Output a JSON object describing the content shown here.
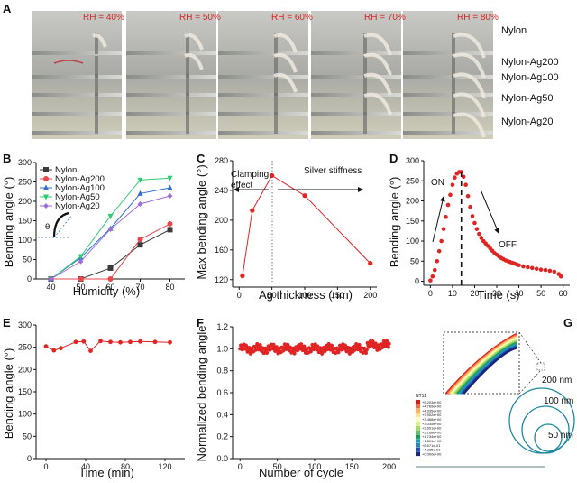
{
  "panel_a": {
    "letter": "A",
    "rh_labels": [
      "RH = 40%",
      "RH = 50%",
      "RH = 60%",
      "RH = 70%",
      "RH = 80%"
    ],
    "sample_labels": [
      "Nylon",
      "Nylon-Ag200",
      "Nylon-Ag100",
      "Nylon-Ag50",
      "Nylon-Ag20"
    ]
  },
  "panel_letters": {
    "b": "B",
    "c": "C",
    "d": "D",
    "e": "E",
    "f": "F",
    "g": "G"
  },
  "colors": {
    "nylon": "#3b3b3b",
    "ag200": "#e8474c",
    "ag100": "#2f6fd0",
    "ag50": "#2ecc71",
    "ag20": "#9b6fd6",
    "red": "#e02424"
  },
  "chart_data": [
    {
      "panel": "B",
      "type": "line",
      "xlabel": "Humidity (%)",
      "ylabel": "Bending angle (°)",
      "xlim": [
        35,
        85
      ],
      "ylim": [
        0,
        300
      ],
      "xticks": [
        40,
        50,
        60,
        70,
        80
      ],
      "yticks": [
        0,
        50,
        100,
        150,
        200,
        250,
        300
      ],
      "legend_position": "top-left",
      "inset_symbol": "θ",
      "x": [
        40,
        50,
        60,
        70,
        80
      ],
      "series": [
        {
          "name": "Nylon",
          "color": "#3b3b3b",
          "marker": "square",
          "values": [
            0,
            0,
            28,
            88,
            127
          ]
        },
        {
          "name": "Nylon-Ag200",
          "color": "#e8474c",
          "marker": "circle",
          "values": [
            0,
            0,
            0,
            102,
            142
          ]
        },
        {
          "name": "Nylon-Ag100",
          "color": "#2f6fd0",
          "marker": "triangle-up",
          "values": [
            0,
            55,
            130,
            220,
            235
          ]
        },
        {
          "name": "Nylon-Ag50",
          "color": "#2ecc71",
          "marker": "triangle-down",
          "values": [
            0,
            58,
            162,
            255,
            260
          ]
        },
        {
          "name": "Nylon-Ag20",
          "color": "#9b6fd6",
          "marker": "diamond",
          "values": [
            0,
            45,
            128,
            193,
            214
          ]
        }
      ]
    },
    {
      "panel": "C",
      "type": "line",
      "xlabel": "Ag thickness (nm)",
      "ylabel": "Max bending angle (°)",
      "xlim": [
        -10,
        210
      ],
      "ylim": [
        110,
        280
      ],
      "xticks": [
        0,
        50,
        100,
        150,
        200
      ],
      "yticks": [
        120,
        160,
        200,
        240,
        280
      ],
      "annotations": [
        "Clamping effect",
        "Silver stiffness"
      ],
      "x": [
        5,
        20,
        50,
        100,
        200
      ],
      "series": [
        {
          "color": "#e02424",
          "values": [
            125,
            213,
            260,
            233,
            142
          ]
        }
      ]
    },
    {
      "panel": "D",
      "type": "scatter",
      "xlabel": "Time (s)",
      "ylabel": "Bending angle (°)",
      "xlim": [
        -3,
        63
      ],
      "ylim": [
        -10,
        300
      ],
      "xticks": [
        0,
        10,
        20,
        30,
        40,
        50,
        60
      ],
      "yticks": [
        0,
        50,
        100,
        150,
        200,
        250,
        300
      ],
      "annotations": [
        "ON",
        "OFF"
      ],
      "on_off_time": 14,
      "x": [
        0,
        1,
        2,
        3,
        4,
        5,
        6,
        7,
        8,
        9,
        10,
        11,
        12,
        13,
        14,
        15,
        16,
        17,
        18,
        19,
        20,
        21,
        22,
        23,
        24,
        25,
        26,
        27,
        28,
        29,
        30,
        31,
        32,
        33,
        34,
        35,
        36,
        37,
        38,
        39,
        40,
        42,
        44,
        46,
        48,
        50,
        52,
        54,
        56,
        58,
        59
      ],
      "series": [
        {
          "color": "#e02424",
          "values": [
            2,
            12,
            28,
            50,
            75,
            100,
            130,
            160,
            190,
            215,
            240,
            258,
            268,
            272,
            272,
            260,
            240,
            212,
            185,
            162,
            145,
            130,
            118,
            108,
            100,
            94,
            88,
            82,
            76,
            70,
            66,
            62,
            58,
            55,
            52,
            50,
            48,
            46,
            44,
            42,
            40,
            37,
            35,
            33,
            31,
            29,
            28,
            26,
            24,
            18,
            12
          ]
        }
      ]
    },
    {
      "panel": "E",
      "type": "line",
      "xlabel": "Time (min)",
      "ylabel": "Bending angle (°)",
      "xlim": [
        -10,
        140
      ],
      "ylim": [
        0,
        300
      ],
      "xticks": [
        0,
        40,
        80,
        120
      ],
      "yticks": [
        0,
        50,
        100,
        150,
        200,
        250,
        300
      ],
      "x": [
        0,
        8,
        15,
        30,
        38,
        45,
        55,
        65,
        75,
        85,
        95,
        110,
        125
      ],
      "series": [
        {
          "color": "#e02424",
          "values": [
            252,
            243,
            248,
            262,
            263,
            242,
            264,
            262,
            261,
            262,
            263,
            262,
            261
          ]
        }
      ]
    },
    {
      "panel": "F",
      "type": "scatter",
      "xlabel": "Number of cycle",
      "ylabel": "Normalized bending angle",
      "xlim": [
        -10,
        215
      ],
      "ylim": [
        0,
        1.2
      ],
      "xticks": [
        0,
        50,
        100,
        150,
        200
      ],
      "yticks": [
        0.0,
        0.2,
        0.4,
        0.6,
        0.8,
        1.0,
        1.2
      ],
      "series": [
        {
          "color": "#e02424",
          "values_summary": "about 1.0 for cycles 0–200"
        }
      ]
    }
  ],
  "panel_g": {
    "thickness_labels": [
      "200 nm",
      "100 nm",
      "50 nm"
    ],
    "legend_title": "NT11",
    "legend_values": [
      "+5.203e+00",
      "+4.769e+00",
      "+4.335e+00",
      "+3.902e+00",
      "+3.468e+00",
      "+3.035e+00",
      "+2.601e+00",
      "+2.168e+00",
      "+1.734e+00",
      "+1.301e+00",
      "+8.671e-01",
      "+4.335e-01",
      "+0.000e+00"
    ]
  }
}
